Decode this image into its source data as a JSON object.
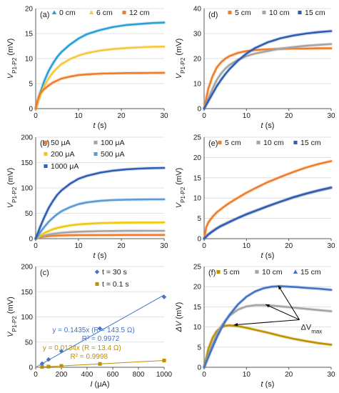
{
  "chart_data": [
    {
      "id": "a",
      "panel_label": "(a)",
      "type": "line",
      "xlabel": "t (s)",
      "ylabel_main": "V",
      "ylabel_sub": "P1-P2",
      "ylabel_unit": " (mV)",
      "xlim": [
        0,
        30
      ],
      "ylim": [
        0,
        20
      ],
      "xticks": [
        0,
        10,
        20,
        30
      ],
      "yticks": [
        0,
        5,
        10,
        15,
        20
      ],
      "xtick_labels": [
        "0",
        "10",
        "20",
        "30"
      ],
      "ytick_labels": [
        "0",
        "5",
        "10",
        "15",
        "20"
      ],
      "legend_position": "top",
      "series": [
        {
          "name": "0 cm",
          "color": "#2b9fd8",
          "marker": "triangle",
          "x": [
            0,
            1,
            2,
            3,
            4,
            5,
            6,
            8,
            10,
            12,
            15,
            18,
            21,
            24,
            27,
            30
          ],
          "y": [
            0,
            3.0,
            5.5,
            7.5,
            9.0,
            10.3,
            11.3,
            12.8,
            14.0,
            14.9,
            15.7,
            16.3,
            16.7,
            16.9,
            17.1,
            17.2
          ]
        },
        {
          "name": "6 cm",
          "color": "#f7c842",
          "marker": "triangle",
          "x": [
            0,
            1,
            2,
            3,
            4,
            5,
            6,
            8,
            10,
            12,
            15,
            18,
            21,
            24,
            27,
            30
          ],
          "y": [
            0,
            2.5,
            4.5,
            6.0,
            7.2,
            8.1,
            8.9,
            9.9,
            10.6,
            11.1,
            11.6,
            11.9,
            12.1,
            12.25,
            12.35,
            12.4
          ]
        },
        {
          "name": "12 cm",
          "color": "#f07d2a",
          "marker": "square",
          "x": [
            0,
            0.5,
            1,
            1.5,
            2,
            3,
            4,
            5,
            6,
            8,
            10,
            12,
            15,
            18,
            21,
            24,
            27,
            30
          ],
          "y": [
            0,
            1.8,
            3.0,
            3.5,
            3.9,
            4.6,
            5.2,
            5.6,
            6.0,
            6.4,
            6.7,
            6.85,
            7.0,
            7.05,
            7.1,
            7.12,
            7.14,
            7.15
          ]
        }
      ]
    },
    {
      "id": "b",
      "panel_label": "(b)",
      "type": "line",
      "xlabel": "t (s)",
      "ylabel_main": "V",
      "ylabel_sub": "P1-P2",
      "ylabel_unit": " (mV)",
      "xlim": [
        0,
        30
      ],
      "ylim": [
        0,
        200
      ],
      "xticks": [
        0,
        10,
        20,
        30
      ],
      "yticks": [
        0,
        50,
        100,
        150,
        200
      ],
      "xtick_labels": [
        "0",
        "10",
        "20",
        "30"
      ],
      "ytick_labels": [
        "0",
        "50",
        "100",
        "150",
        "200"
      ],
      "legend_position": "top-left",
      "series": [
        {
          "name": "50 μA",
          "color": "#f07d2a",
          "marker": "square",
          "x": [
            0,
            1,
            2,
            3,
            4,
            5,
            6,
            8,
            10,
            12,
            15,
            18,
            21,
            24,
            27,
            30
          ],
          "y": [
            0,
            2.5,
            4.0,
            5.0,
            5.7,
            6.1,
            6.4,
            6.8,
            7.0,
            7.1,
            7.2,
            7.25,
            7.3,
            7.3,
            7.3,
            7.3
          ]
        },
        {
          "name": "100 μA",
          "color": "#a5a5a5",
          "marker": "square",
          "x": [
            0,
            1,
            2,
            3,
            4,
            5,
            6,
            8,
            10,
            12,
            15,
            18,
            21,
            24,
            27,
            30
          ],
          "y": [
            0,
            3.5,
            6.0,
            8.0,
            9.5,
            10.6,
            11.5,
            12.8,
            13.6,
            14.2,
            14.8,
            15.1,
            15.3,
            15.4,
            15.45,
            15.5
          ]
        },
        {
          "name": "200 μA",
          "color": "#f2c80f",
          "marker": "square",
          "x": [
            0,
            1,
            2,
            3,
            4,
            5,
            6,
            8,
            10,
            12,
            15,
            18,
            21,
            24,
            27,
            30
          ],
          "y": [
            0,
            6,
            11,
            15,
            18.5,
            21,
            23,
            26,
            28,
            29.3,
            30.5,
            31.2,
            31.6,
            31.8,
            31.9,
            32
          ]
        },
        {
          "name": "500 μA",
          "color": "#5b9bd5",
          "marker": "square",
          "x": [
            0,
            1,
            2,
            3,
            4,
            5,
            6,
            8,
            10,
            12,
            15,
            18,
            21,
            24,
            27,
            30
          ],
          "y": [
            0,
            12,
            23,
            33,
            41,
            48,
            54,
            62,
            68,
            71.5,
            74.5,
            76,
            76.8,
            77.2,
            77.4,
            77.5
          ]
        },
        {
          "name": "1000 μA",
          "color": "#2f5fb3",
          "marker": "square",
          "x": [
            0,
            1,
            2,
            3,
            4,
            5,
            6,
            8,
            10,
            12,
            15,
            18,
            21,
            24,
            27,
            30
          ],
          "y": [
            0,
            22,
            42,
            60,
            74,
            86,
            95,
            108,
            118,
            124,
            130,
            134,
            136.5,
            138,
            139,
            139.5
          ]
        }
      ]
    },
    {
      "id": "c",
      "panel_label": "(c)",
      "type": "scatter",
      "xlabel": "I (μA)",
      "ylabel_main": "V",
      "ylabel_sub": "P1-P2",
      "ylabel_unit": " (mV)",
      "xlim": [
        0,
        1000
      ],
      "ylim": [
        0,
        200
      ],
      "xticks": [
        0,
        200,
        400,
        600,
        800,
        1000
      ],
      "yticks": [
        0,
        50,
        100,
        150,
        200
      ],
      "xtick_labels": [
        "0",
        "200",
        "400",
        "600",
        "800",
        "1000"
      ],
      "ytick_labels": [
        "0",
        "50",
        "100",
        "150",
        "200"
      ],
      "legend_position": "top-right",
      "series": [
        {
          "name": "t = 30 s",
          "color": "#4472c4",
          "marker": "diamond",
          "x": [
            50,
            100,
            200,
            500,
            1000
          ],
          "y": [
            7.3,
            15.5,
            32,
            77,
            139.5
          ],
          "fit": {
            "slope": 0.1435,
            "label": "y = 0.1435x (R = 143.5 Ω)",
            "r2": "R² = 0.9972"
          }
        },
        {
          "name": "t = 0.1 s",
          "color": "#bf9000",
          "marker": "square",
          "x": [
            50,
            100,
            200,
            500,
            1000
          ],
          "y": [
            0.7,
            1.3,
            2.7,
            6.7,
            13.4
          ],
          "fit": {
            "slope": 0.0134,
            "label": "y = 0.0134x (R = 13.4 Ω)",
            "r2": "R² = 0.9998"
          }
        }
      ]
    },
    {
      "id": "d",
      "panel_label": "(d)",
      "type": "line",
      "xlabel": "t (s)",
      "ylabel_main": "V",
      "ylabel_sub": "P1-P2",
      "ylabel_unit": " (mV)",
      "xlim": [
        0,
        30
      ],
      "ylim": [
        0,
        40
      ],
      "xticks": [
        0,
        10,
        20,
        30
      ],
      "yticks": [
        0,
        10,
        20,
        30,
        40
      ],
      "xtick_labels": [
        "0",
        "10",
        "20",
        "30"
      ],
      "ytick_labels": [
        "0",
        "10",
        "20",
        "30",
        "40"
      ],
      "legend_position": "top",
      "series": [
        {
          "name": "5 cm",
          "color": "#f07d2a",
          "marker": "square",
          "x": [
            0,
            1,
            2,
            3,
            4,
            5,
            6,
            8,
            10,
            12,
            15,
            18,
            21,
            24,
            27,
            30
          ],
          "y": [
            0,
            8,
            13,
            16.5,
            18.5,
            20,
            21,
            22.3,
            23,
            23.4,
            23.7,
            23.9,
            24,
            24,
            24.1,
            24.1
          ]
        },
        {
          "name": "10 cm",
          "color": "#a5a5a5",
          "marker": "square",
          "x": [
            0,
            1,
            2,
            3,
            4,
            5,
            6,
            8,
            10,
            12,
            15,
            18,
            21,
            24,
            27,
            30
          ],
          "y": [
            0,
            4,
            8,
            11.5,
            14,
            16,
            17.5,
            19.5,
            21,
            22,
            23,
            24,
            24.6,
            25.1,
            25.5,
            25.8
          ]
        },
        {
          "name": "15 cm",
          "color": "#2f5fb3",
          "marker": "square",
          "x": [
            0,
            1,
            2,
            3,
            4,
            5,
            6,
            8,
            10,
            12,
            15,
            18,
            21,
            24,
            27,
            30
          ],
          "y": [
            0,
            3,
            6,
            9,
            11.5,
            13.8,
            15.8,
            19.2,
            22,
            24.2,
            26.5,
            28.1,
            29.2,
            30,
            30.6,
            31
          ]
        }
      ]
    },
    {
      "id": "e",
      "panel_label": "(e)",
      "type": "line",
      "xlabel": "t (s)",
      "ylabel_main": "V",
      "ylabel_sub": "P1-P2",
      "ylabel_unit": " (mV)",
      "xlim": [
        0,
        30
      ],
      "ylim": [
        0,
        25
      ],
      "xticks": [
        0,
        10,
        20,
        30
      ],
      "yticks": [
        0,
        5,
        10,
        15,
        20,
        25
      ],
      "xtick_labels": [
        "0",
        "10",
        "20",
        "30"
      ],
      "ytick_labels": [
        "0",
        "5",
        "10",
        "15",
        "20",
        "25"
      ],
      "legend_position": "top",
      "series": [
        {
          "name": "5 cm",
          "color": "#f07d2a",
          "marker": "square",
          "x": [
            0,
            0.5,
            1,
            2,
            3,
            4,
            5,
            6,
            8,
            10,
            12,
            15,
            18,
            21,
            24,
            27,
            30
          ],
          "y": [
            0,
            2.8,
            4.0,
            5.4,
            6.5,
            7.3,
            8.1,
            8.8,
            10.1,
            11.3,
            12.4,
            13.9,
            15.2,
            16.4,
            17.5,
            18.4,
            19.1
          ]
        },
        {
          "name": "10 cm",
          "color": "#a5a5a5",
          "marker": "square",
          "x": [
            0,
            0.5,
            1,
            2,
            3,
            4,
            5,
            6,
            8,
            10,
            12,
            15,
            18,
            21,
            24,
            27,
            30
          ],
          "y": [
            0,
            0.6,
            1.1,
            1.9,
            2.6,
            3.2,
            3.7,
            4.2,
            5.1,
            6.0,
            6.8,
            8.0,
            9.1,
            10.1,
            11.0,
            11.8,
            12.5
          ]
        },
        {
          "name": "15 cm",
          "color": "#2f5fb3",
          "marker": "square",
          "x": [
            0,
            0.5,
            1,
            2,
            3,
            4,
            5,
            6,
            8,
            10,
            12,
            15,
            18,
            21,
            24,
            27,
            30
          ],
          "y": [
            0,
            0.5,
            1.0,
            1.8,
            2.5,
            3.1,
            3.6,
            4.1,
            5.1,
            6.0,
            6.8,
            8.0,
            9.1,
            10.2,
            11.1,
            11.9,
            12.6
          ]
        }
      ]
    },
    {
      "id": "f",
      "panel_label": "(f)",
      "type": "line",
      "xlabel": "t (s)",
      "ylabel_main": "ΔV",
      "ylabel_sub": "",
      "ylabel_unit": " (mV)",
      "xlim": [
        0,
        30
      ],
      "ylim": [
        0,
        25
      ],
      "xticks": [
        0,
        10,
        20,
        30
      ],
      "yticks": [
        0,
        5,
        10,
        15,
        20,
        25
      ],
      "xtick_labels": [
        "0",
        "10",
        "20",
        "30"
      ],
      "ytick_labels": [
        "0",
        "5",
        "10",
        "15",
        "20",
        "25"
      ],
      "legend_position": "top",
      "annotation": {
        "main": "ΔV",
        "sub": "max"
      },
      "series": [
        {
          "name": "5 cm",
          "color": "#bf9000",
          "marker": "square",
          "x": [
            0,
            1,
            2,
            3,
            4,
            5,
            6,
            8,
            10,
            12,
            15,
            18,
            21,
            24,
            27,
            30
          ],
          "y": [
            0,
            4.5,
            7.3,
            9.0,
            9.9,
            10.3,
            10.4,
            10.2,
            9.8,
            9.3,
            8.6,
            7.8,
            7.1,
            6.5,
            6.0,
            5.6
          ]
        },
        {
          "name": "10 cm",
          "color": "#a5a5a5",
          "marker": "square",
          "x": [
            0,
            1,
            2,
            3,
            4,
            5,
            6,
            8,
            10,
            12,
            14,
            16,
            18,
            21,
            24,
            27,
            30
          ],
          "y": [
            0,
            3.0,
            5.8,
            8.2,
            10.1,
            11.6,
            12.8,
            14.3,
            15.1,
            15.4,
            15.4,
            15.3,
            15.1,
            14.8,
            14.5,
            14.2,
            13.9
          ]
        },
        {
          "name": "15 cm",
          "color": "#4472c4",
          "marker": "triangle",
          "x": [
            0,
            1,
            2,
            3,
            4,
            5,
            6,
            8,
            10,
            12,
            14,
            16,
            18,
            20,
            22,
            24,
            27,
            30
          ],
          "y": [
            0,
            2.5,
            5.0,
            7.4,
            9.5,
            11.4,
            13.0,
            15.6,
            17.5,
            18.8,
            19.6,
            20.0,
            20.1,
            20.0,
            19.9,
            19.7,
            19.5,
            19.2
          ]
        }
      ]
    }
  ]
}
